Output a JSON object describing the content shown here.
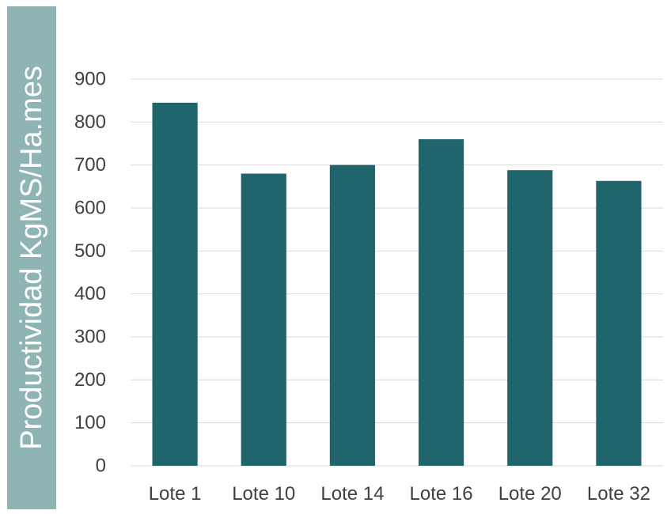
{
  "chart_data": {
    "type": "bar",
    "categories": [
      "Lote 1",
      "Lote 10",
      "Lote 14",
      "Lote 16",
      "Lote 20",
      "Lote 32"
    ],
    "values": [
      845,
      680,
      700,
      760,
      688,
      663
    ],
    "title": "",
    "xlabel": "",
    "ylabel": "Productividad KgMS/Ha.mes",
    "ylim": [
      0,
      900
    ],
    "yticks": [
      0,
      100,
      200,
      300,
      400,
      500,
      600,
      700,
      800,
      900
    ],
    "grid": true,
    "legend": "none",
    "colors": {
      "bar": "#21656c",
      "ylabel_band": "#8fb4b4",
      "grid": "#d9d9d9",
      "text": "#404040"
    }
  }
}
